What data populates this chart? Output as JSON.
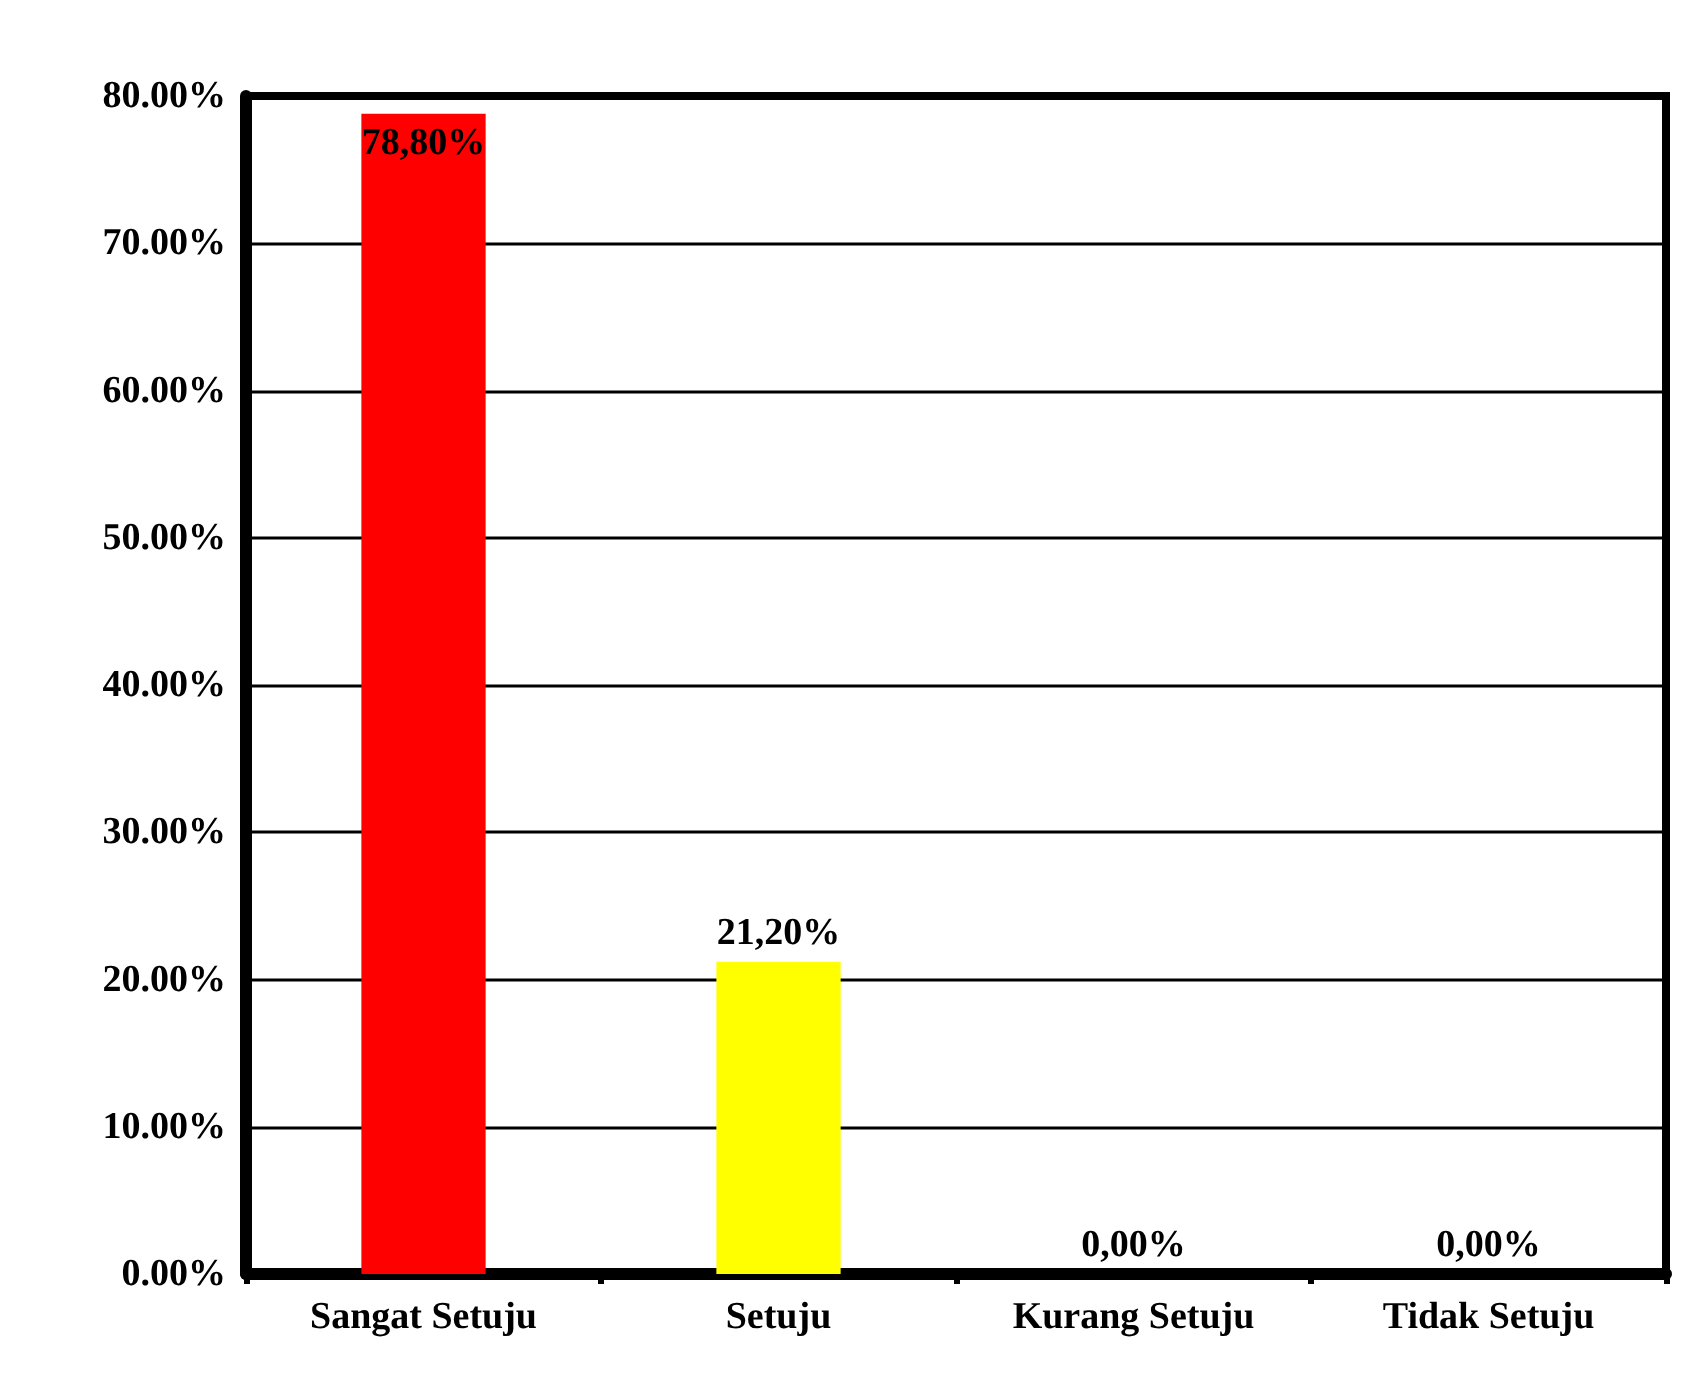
{
  "chart_data": {
    "type": "bar",
    "categories": [
      "Sangat Setuju",
      "Setuju",
      "Kurang Setuju",
      "Tidak Setuju"
    ],
    "values": [
      78.8,
      21.2,
      0,
      0
    ],
    "colors": [
      "#ff0000",
      "#ffff00",
      null,
      null
    ],
    "value_labels": [
      "78,80%",
      "21,20%",
      "0,00%",
      "0,00%"
    ],
    "ylim": [
      0,
      80
    ],
    "yticks": [
      {
        "value": 0,
        "label": "0.00%"
      },
      {
        "value": 10,
        "label": "10.00%"
      },
      {
        "value": 20,
        "label": "20.00%"
      },
      {
        "value": 30,
        "label": "30.00%"
      },
      {
        "value": 40,
        "label": "40.00%"
      },
      {
        "value": 50,
        "label": "50.00%"
      },
      {
        "value": 60,
        "label": "60.00%"
      },
      {
        "value": 70,
        "label": "70.00%"
      },
      {
        "value": 80,
        "label": "80.00%"
      }
    ],
    "grid": "y"
  }
}
